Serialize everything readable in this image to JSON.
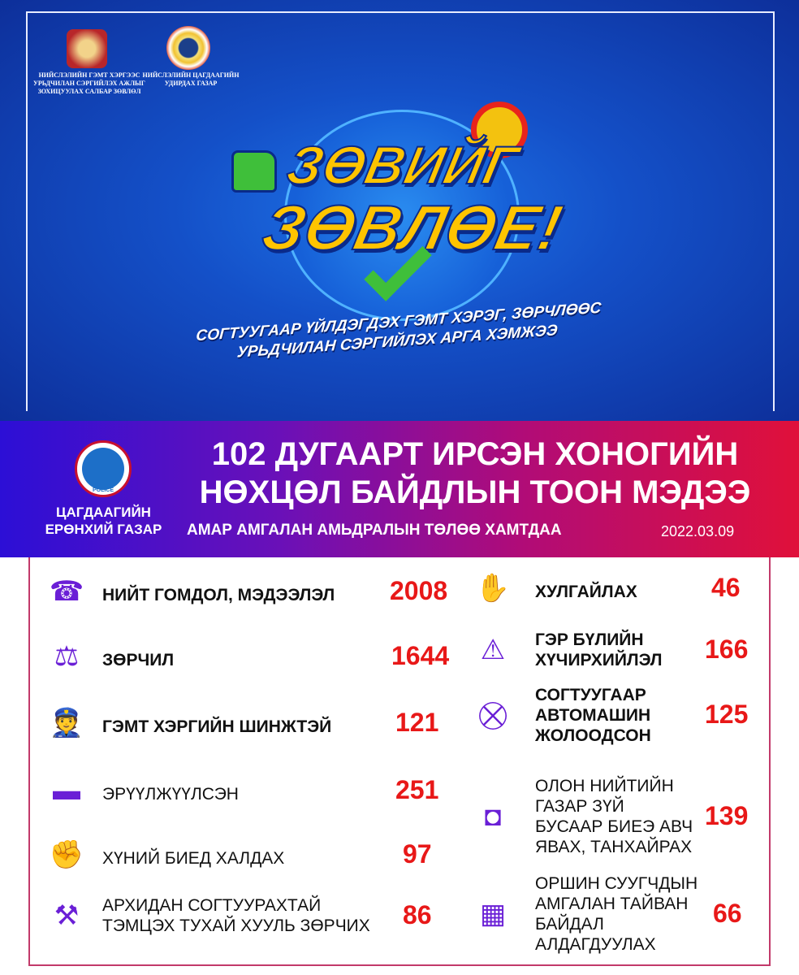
{
  "header": {
    "org_left": [
      "НИЙСЛЭЛИЙН ГЭМТ ХЭРГЭЭС",
      "УРЬДЧИЛАН СЭРГИЙЛЭХ АЖЛЫГ",
      "ЗОХИЦУУЛАХ САЛБАР ЗӨВЛӨЛ"
    ],
    "org_right": [
      "НИЙСЛЭЛИЙН ЦАГДААГИЙН",
      "УДИРДАХ ГАЗАР"
    ],
    "campaign_line1": "ЗӨВИЙГ",
    "campaign_line2": "ЗӨВЛӨЕ!",
    "slogan_line1": "СОГТУУГААР ҮЙЛДЭГДЭХ ГЭМТ ХЭРЭГ,  ЗӨРЧЛӨӨС",
    "slogan_line2": "УРЬДЧИЛАН СЭРГИЙЛЭХ АРГА ХЭМЖЭЭ"
  },
  "banner": {
    "agency_line1": "ЦАГДААГИЙН",
    "agency_line2": "ЕРӨНХИЙ ГАЗАР",
    "logo_text": "POLICE",
    "headline_line1": "102 ДУГААРТ ИРСЭН ХОНОГИЙН",
    "headline_line2": "НӨХЦӨЛ БАЙДЛЫН  ТООН МЭДЭЭ",
    "tagline": "АМАР АМГАЛАН АМЬДРАЛЫН ТӨЛӨӨ ХАМТДАА",
    "date": "2022.03.09"
  },
  "colors": {
    "accent_icon": "#6a1fd6",
    "number": "#e81818",
    "banner_start": "#2c0fd6",
    "banner_end": "#e0103a"
  },
  "stats_left": [
    {
      "icon": "phone-24h-icon",
      "label": "НИЙТ ГОМДОЛ, МЭДЭЭЛЭЛ",
      "value": "2008"
    },
    {
      "icon": "gavel-book-icon",
      "label": "ЗӨРЧИЛ",
      "value": "1644"
    },
    {
      "icon": "police-arrest-icon",
      "label": "ГЭМТ ХЭРГИЙН ШИНЖТЭЙ",
      "value": "121"
    },
    {
      "icon": "person-lying-icon",
      "label": "ЭРҮҮЛЖҮҮЛСЭН",
      "value": "251"
    },
    {
      "icon": "assault-icon",
      "label": "ХҮНИЙ БИЕД ХАЛДАХ",
      "value": "97"
    },
    {
      "icon": "gavel-icon",
      "label": "АРХИДАН СОГТУУРАХТАЙ ТЭМЦЭХ ТУХАЙ ХУУЛЬ ЗӨРЧИХ",
      "label_lines": [
        "АРХИДАН СОГТУУРАХТАЙ",
        "ТЭМЦЭХ ТУХАЙ ХУУЛЬ ЗӨРЧИХ"
      ],
      "value": "86"
    }
  ],
  "stats_right": [
    {
      "icon": "theft-icon",
      "label_lines": [
        "ХУЛГАЙЛАХ"
      ],
      "value": "46"
    },
    {
      "icon": "domestic-violence-icon",
      "label_lines": [
        "ГЭР БҮЛИЙН",
        "ХҮЧИРХИЙЛЭЛ"
      ],
      "value": "166"
    },
    {
      "icon": "drunk-driving-icon",
      "label_lines": [
        "СОГТУУГААР",
        "АВТОМАШИН",
        "ЖОЛООДСОН"
      ],
      "value": "125"
    },
    {
      "icon": "cctv-camera-icon",
      "label_lines": [
        "ОЛОН НИЙТИЙН",
        "ГАЗАР ЗҮЙ",
        "БУСААР БИЕЭ АВЧ",
        "ЯВАХ, ТАНХАЙРАХ"
      ],
      "value": "139"
    },
    {
      "icon": "apartment-building-icon",
      "label_lines": [
        "ОРШИН СУУГЧДЫН",
        "АМГАЛАН ТАЙВАН",
        "БАЙДАЛ",
        "АЛДАГДУУЛАХ"
      ],
      "value": "66"
    }
  ]
}
